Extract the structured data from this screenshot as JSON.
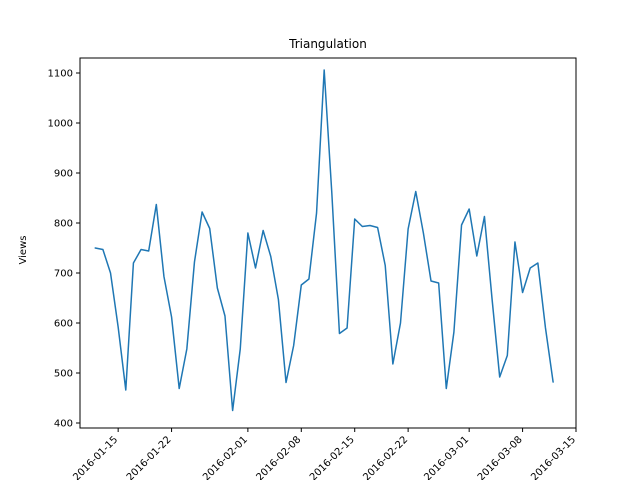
{
  "chart_data": {
    "type": "line",
    "title": "Triangulation",
    "xlabel": "",
    "ylabel": "Views",
    "x_tick_labels": [
      "2016-01-15",
      "2016-01-22",
      "2016-02-01",
      "2016-02-08",
      "2016-02-15",
      "2016-02-22",
      "2016-03-01",
      "2016-03-08",
      "2016-03-15"
    ],
    "x_ticks": [
      "2016-01-15",
      "2016-01-22",
      "2016-02-01",
      "2016-02-08",
      "2016-02-15",
      "2016-02-22",
      "2016-03-01",
      "2016-03-08",
      "2016-03-15"
    ],
    "xlim": [
      "2016-01-10",
      "2016-03-15"
    ],
    "ylim": [
      390,
      1130
    ],
    "y_ticks": [
      400,
      500,
      600,
      700,
      800,
      900,
      1000,
      1100
    ],
    "grid": false,
    "line_color": "#1f77b4",
    "series": [
      {
        "x": [
          "2016-01-12",
          "2016-01-13",
          "2016-01-14",
          "2016-01-15",
          "2016-01-16",
          "2016-01-17",
          "2016-01-18",
          "2016-01-19",
          "2016-01-20",
          "2016-01-21",
          "2016-01-22",
          "2016-01-23",
          "2016-01-24",
          "2016-01-25",
          "2016-01-26",
          "2016-01-27",
          "2016-01-28",
          "2016-01-29",
          "2016-01-30",
          "2016-01-31",
          "2016-02-01",
          "2016-02-02",
          "2016-02-03",
          "2016-02-04",
          "2016-02-05",
          "2016-02-06",
          "2016-02-07",
          "2016-02-08",
          "2016-02-09",
          "2016-02-10",
          "2016-02-11",
          "2016-02-12",
          "2016-02-13",
          "2016-02-14",
          "2016-02-15",
          "2016-02-16",
          "2016-02-17",
          "2016-02-18",
          "2016-02-19",
          "2016-02-20",
          "2016-02-21",
          "2016-02-22",
          "2016-02-23",
          "2016-02-24",
          "2016-02-25",
          "2016-02-26",
          "2016-02-27",
          "2016-02-28",
          "2016-02-29",
          "2016-03-01",
          "2016-03-02",
          "2016-03-03",
          "2016-03-04",
          "2016-03-05",
          "2016-03-06",
          "2016-03-07",
          "2016-03-08",
          "2016-03-09",
          "2016-03-10",
          "2016-03-11",
          "2016-03-12"
        ],
        "values": [
          750,
          747,
          700,
          592,
          466,
          720,
          747,
          744,
          837,
          693,
          612,
          469,
          548,
          722,
          822,
          789,
          670,
          614,
          425,
          548,
          780,
          710,
          785,
          733,
          647,
          481,
          555,
          676,
          688,
          820,
          1106,
          860,
          579,
          590,
          808,
          793,
          795,
          791,
          715,
          518,
          600,
          788,
          863,
          780,
          684,
          680,
          469,
          582,
          796,
          828,
          734,
          813,
          648,
          492,
          535,
          762,
          661,
          710,
          720,
          590,
          482
        ]
      }
    ]
  }
}
